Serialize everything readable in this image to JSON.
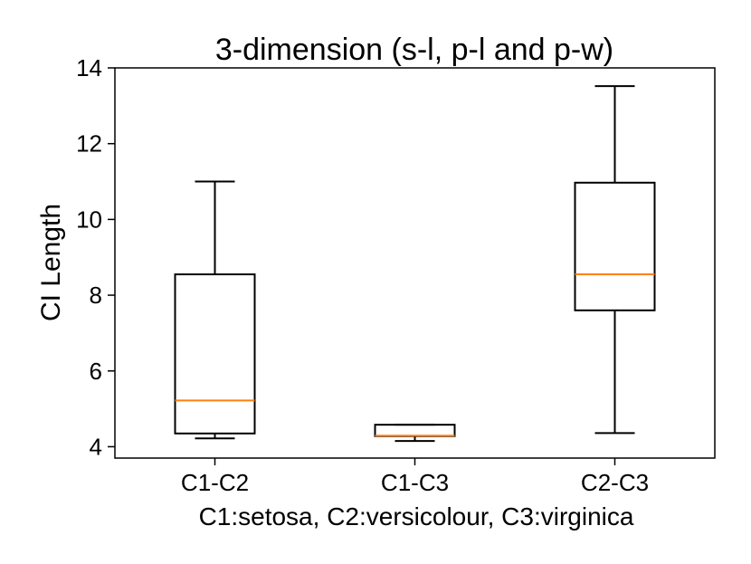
{
  "chart_data": {
    "type": "box",
    "title": "3-dimension (s-l, p-l and p-w)",
    "xlabel": "C1:setosa, C2:versicolour, C3:virginica",
    "ylabel": "CI Length",
    "ylim": [
      3.7,
      14.0
    ],
    "yticks": [
      4,
      6,
      8,
      10,
      12,
      14
    ],
    "categories": [
      "C1-C2",
      "C1-C3",
      "C2-C3"
    ],
    "boxes": [
      {
        "category": "C1-C2",
        "whisker_low": 4.22,
        "q1": 4.35,
        "median": 5.22,
        "q3": 8.55,
        "whisker_high": 11.0
      },
      {
        "category": "C1-C3",
        "whisker_low": 4.15,
        "q1": 4.28,
        "median": 4.29,
        "q3": 4.58,
        "whisker_high": 4.58
      },
      {
        "category": "C2-C3",
        "whisker_low": 4.36,
        "q1": 7.6,
        "median": 8.55,
        "q3": 10.97,
        "whisker_high": 13.52
      }
    ],
    "grid": false,
    "legend": "none",
    "colors": {
      "box": "#000000",
      "median": "#ff7f0e"
    }
  }
}
